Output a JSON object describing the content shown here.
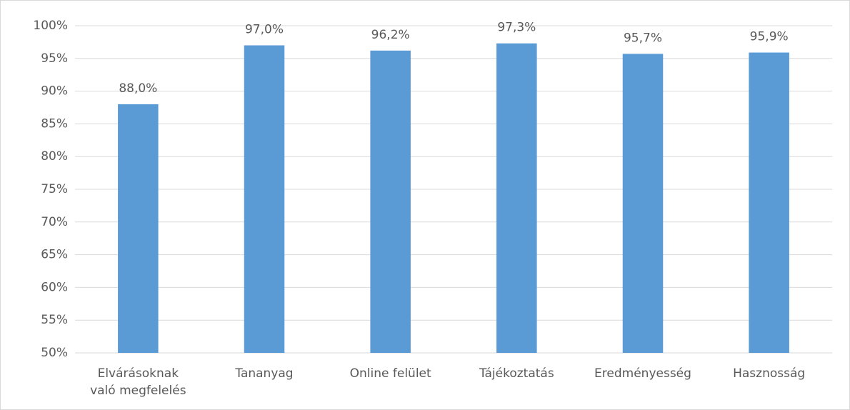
{
  "chart_data": {
    "type": "bar",
    "categories": [
      "Elvárásoknak való megfelelés",
      "Tananyag",
      "Online felület",
      "Tájékoztatás",
      "Eredményesség",
      "Hasznosság"
    ],
    "values": [
      88.0,
      97.0,
      96.2,
      97.3,
      95.7,
      95.9
    ],
    "value_labels": [
      "88,0%",
      "97,0%",
      "96,2%",
      "97,3%",
      "95,7%",
      "95,9%"
    ],
    "color": "#5b9bd5",
    "ylim": [
      50,
      100
    ],
    "yticks": [
      {
        "value": 50,
        "label": "50%"
      },
      {
        "value": 55,
        "label": "55%"
      },
      {
        "value": 60,
        "label": "60%"
      },
      {
        "value": 65,
        "label": "65%"
      },
      {
        "value": 70,
        "label": "70%"
      },
      {
        "value": 75,
        "label": "75%"
      },
      {
        "value": 80,
        "label": "80%"
      },
      {
        "value": 85,
        "label": "85%"
      },
      {
        "value": 90,
        "label": "90%"
      },
      {
        "value": 95,
        "label": "95%"
      },
      {
        "value": 100,
        "label": "100%"
      }
    ],
    "grid": true
  }
}
